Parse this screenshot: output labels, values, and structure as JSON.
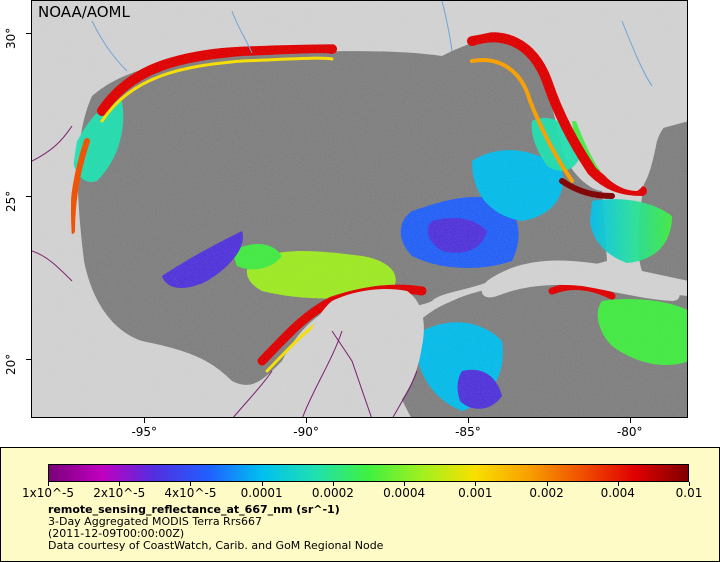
{
  "map": {
    "credit": "NOAA/AOML",
    "lon_ticks": [
      {
        "label": "-95°",
        "value": -95
      },
      {
        "label": "-90°",
        "value": -90
      },
      {
        "label": "-85°",
        "value": -85
      },
      {
        "label": "-80°",
        "value": -80
      }
    ],
    "lat_ticks": [
      {
        "label": "30°",
        "value": 30
      },
      {
        "label": "25°",
        "value": 25
      },
      {
        "label": "20°",
        "value": 20
      }
    ],
    "lon_range": [
      -98.5,
      -78.2
    ],
    "lat_range": [
      18.2,
      31.0
    ],
    "colors": {
      "land": "#d3d3d3",
      "cloud_nodata": "#808080",
      "border": "#7a1f6e",
      "rivers": "#6fa5d8"
    }
  },
  "legend": {
    "tick_labels": [
      "1x10^-5",
      "2x10^-5",
      "4x10^-5",
      "0.0001",
      "0.0002",
      "0.0004",
      "0.001",
      "0.002",
      "0.004",
      "0.01"
    ],
    "variable": "remote_sensing_reflectance_at_667_nm (sr^-1)",
    "description": "3-Day Aggregated MODIS Terra Rrs667",
    "time": "(2011-12-09T00:00:00Z)",
    "courtesy": "Data courtesy of CoastWatch, Carib. and GoM Regional Node",
    "colormap": [
      "#7a007a",
      "#c000c0",
      "#5030e0",
      "#2060ff",
      "#00c0f0",
      "#20e0b0",
      "#40f040",
      "#a0f020",
      "#f8e000",
      "#f8a000",
      "#f05000",
      "#e00000",
      "#800000"
    ]
  }
}
